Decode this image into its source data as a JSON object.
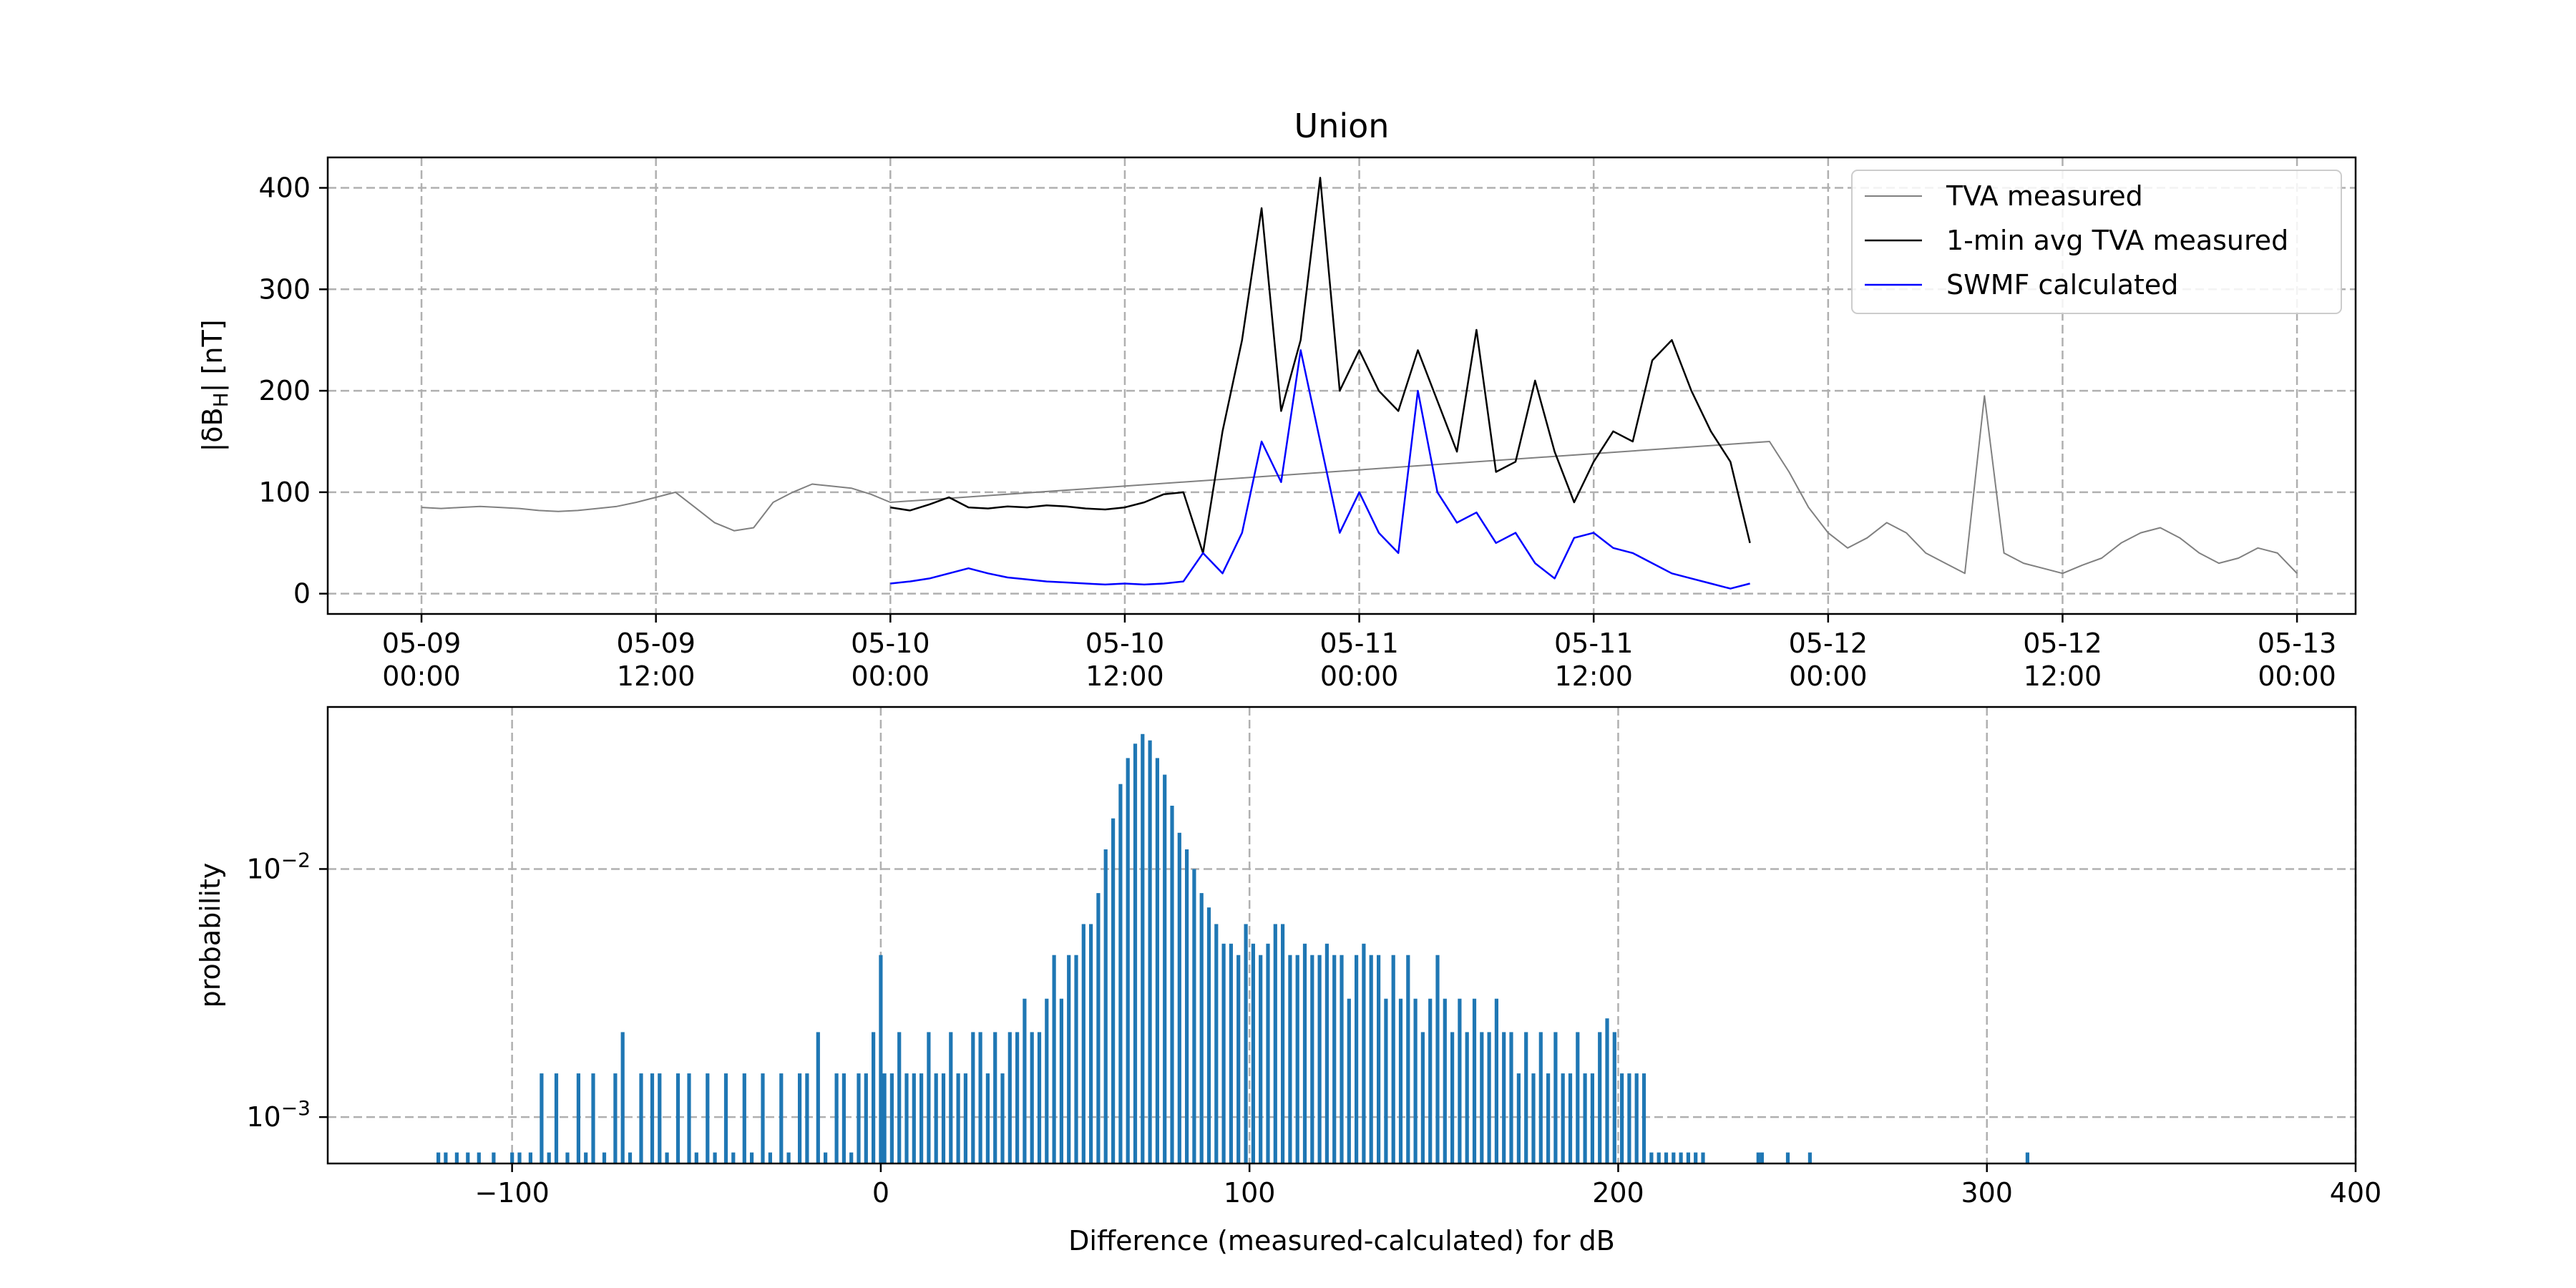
{
  "figure": {
    "background": "#ffffff"
  },
  "chart_data": [
    {
      "type": "line",
      "title": "Union",
      "xlabel": "",
      "ylabel": "|δB_H| [nT]",
      "ylabel_main": "|δB",
      "ylabel_sub": "H",
      "ylabel_tail": "| [nT]",
      "x_unit": "datetime",
      "xlim": [
        "2024-05-08T19:12",
        "2024-05-13T03:00"
      ],
      "ylim": [
        -20,
        430
      ],
      "x_ticks": [
        {
          "value": "2024-05-09T00:00",
          "line1": "05-09",
          "line2": "00:00"
        },
        {
          "value": "2024-05-09T12:00",
          "line1": "05-09",
          "line2": "12:00"
        },
        {
          "value": "2024-05-10T00:00",
          "line1": "05-10",
          "line2": "00:00"
        },
        {
          "value": "2024-05-10T12:00",
          "line1": "05-10",
          "line2": "12:00"
        },
        {
          "value": "2024-05-11T00:00",
          "line1": "05-11",
          "line2": "00:00"
        },
        {
          "value": "2024-05-11T12:00",
          "line1": "05-11",
          "line2": "12:00"
        },
        {
          "value": "2024-05-12T00:00",
          "line1": "05-12",
          "line2": "00:00"
        },
        {
          "value": "2024-05-12T12:00",
          "line1": "05-12",
          "line2": "12:00"
        },
        {
          "value": "2024-05-13T00:00",
          "line1": "05-13",
          "line2": "00:00"
        }
      ],
      "y_ticks": [
        0,
        100,
        200,
        300,
        400
      ],
      "grid": true,
      "legend_position": "top-right",
      "series": [
        {
          "name": "TVA measured",
          "color": "#808080",
          "x": [
            "2024-05-09T00:00",
            "2024-05-09T01:00",
            "2024-05-09T02:00",
            "2024-05-09T03:00",
            "2024-05-09T04:00",
            "2024-05-09T05:00",
            "2024-05-09T06:00",
            "2024-05-09T07:00",
            "2024-05-09T08:00",
            "2024-05-09T09:00",
            "2024-05-09T10:00",
            "2024-05-09T11:00",
            "2024-05-09T12:00",
            "2024-05-09T13:00",
            "2024-05-09T14:00",
            "2024-05-09T15:00",
            "2024-05-09T16:00",
            "2024-05-09T17:00",
            "2024-05-09T18:00",
            "2024-05-09T19:00",
            "2024-05-09T20:00",
            "2024-05-09T21:00",
            "2024-05-09T22:00",
            "2024-05-09T23:00",
            "2024-05-10T00:00",
            "2024-05-11T21:00",
            "2024-05-11T22:00",
            "2024-05-11T23:00",
            "2024-05-12T00:00",
            "2024-05-12T01:00",
            "2024-05-12T02:00",
            "2024-05-12T03:00",
            "2024-05-12T04:00",
            "2024-05-12T05:00",
            "2024-05-12T06:00",
            "2024-05-12T07:00",
            "2024-05-12T08:00",
            "2024-05-12T09:00",
            "2024-05-12T10:00",
            "2024-05-12T11:00",
            "2024-05-12T12:00",
            "2024-05-12T13:00",
            "2024-05-12T14:00",
            "2024-05-12T15:00",
            "2024-05-12T16:00",
            "2024-05-12T17:00",
            "2024-05-12T18:00",
            "2024-05-12T19:00",
            "2024-05-12T20:00",
            "2024-05-12T21:00",
            "2024-05-12T22:00",
            "2024-05-12T23:00",
            "2024-05-13T00:00"
          ],
          "y": [
            85,
            84,
            85,
            86,
            85,
            84,
            82,
            81,
            82,
            84,
            86,
            90,
            95,
            100,
            85,
            70,
            62,
            65,
            90,
            100,
            108,
            106,
            104,
            98,
            90,
            150,
            120,
            85,
            60,
            45,
            55,
            70,
            60,
            40,
            30,
            20,
            195,
            40,
            30,
            25,
            20,
            28,
            35,
            50,
            60,
            65,
            55,
            40,
            30,
            35,
            45,
            40,
            20
          ]
        },
        {
          "name": "1-min avg TVA measured",
          "color": "#000000",
          "x": [
            "2024-05-10T00:00",
            "2024-05-10T01:00",
            "2024-05-10T02:00",
            "2024-05-10T03:00",
            "2024-05-10T04:00",
            "2024-05-10T05:00",
            "2024-05-10T06:00",
            "2024-05-10T07:00",
            "2024-05-10T08:00",
            "2024-05-10T09:00",
            "2024-05-10T10:00",
            "2024-05-10T11:00",
            "2024-05-10T12:00",
            "2024-05-10T13:00",
            "2024-05-10T14:00",
            "2024-05-10T15:00",
            "2024-05-10T16:00",
            "2024-05-10T17:00",
            "2024-05-10T18:00",
            "2024-05-10T19:00",
            "2024-05-10T20:00",
            "2024-05-10T21:00",
            "2024-05-10T22:00",
            "2024-05-10T23:00",
            "2024-05-11T00:00",
            "2024-05-11T01:00",
            "2024-05-11T02:00",
            "2024-05-11T03:00",
            "2024-05-11T04:00",
            "2024-05-11T05:00",
            "2024-05-11T06:00",
            "2024-05-11T07:00",
            "2024-05-11T08:00",
            "2024-05-11T09:00",
            "2024-05-11T10:00",
            "2024-05-11T11:00",
            "2024-05-11T12:00",
            "2024-05-11T13:00",
            "2024-05-11T14:00",
            "2024-05-11T15:00",
            "2024-05-11T16:00",
            "2024-05-11T17:00",
            "2024-05-11T18:00",
            "2024-05-11T19:00",
            "2024-05-11T20:00"
          ],
          "y": [
            85,
            82,
            88,
            95,
            85,
            84,
            86,
            85,
            87,
            86,
            84,
            83,
            85,
            90,
            98,
            100,
            40,
            160,
            250,
            380,
            180,
            250,
            410,
            200,
            240,
            200,
            180,
            240,
            190,
            140,
            260,
            120,
            130,
            210,
            140,
            90,
            130,
            160,
            150,
            230,
            250,
            200,
            160,
            130,
            50
          ]
        },
        {
          "name": "SWMF calculated",
          "color": "#0000ff",
          "x": [
            "2024-05-10T00:00",
            "2024-05-10T01:00",
            "2024-05-10T02:00",
            "2024-05-10T03:00",
            "2024-05-10T04:00",
            "2024-05-10T05:00",
            "2024-05-10T06:00",
            "2024-05-10T07:00",
            "2024-05-10T08:00",
            "2024-05-10T09:00",
            "2024-05-10T10:00",
            "2024-05-10T11:00",
            "2024-05-10T12:00",
            "2024-05-10T13:00",
            "2024-05-10T14:00",
            "2024-05-10T15:00",
            "2024-05-10T16:00",
            "2024-05-10T17:00",
            "2024-05-10T18:00",
            "2024-05-10T19:00",
            "2024-05-10T20:00",
            "2024-05-10T21:00",
            "2024-05-10T22:00",
            "2024-05-10T23:00",
            "2024-05-11T00:00",
            "2024-05-11T01:00",
            "2024-05-11T02:00",
            "2024-05-11T03:00",
            "2024-05-11T04:00",
            "2024-05-11T05:00",
            "2024-05-11T06:00",
            "2024-05-11T07:00",
            "2024-05-11T08:00",
            "2024-05-11T09:00",
            "2024-05-11T10:00",
            "2024-05-11T11:00",
            "2024-05-11T12:00",
            "2024-05-11T13:00",
            "2024-05-11T14:00",
            "2024-05-11T15:00",
            "2024-05-11T16:00",
            "2024-05-11T17:00",
            "2024-05-11T18:00",
            "2024-05-11T19:00",
            "2024-05-11T20:00"
          ],
          "y": [
            10,
            12,
            15,
            20,
            25,
            20,
            16,
            14,
            12,
            11,
            10,
            9,
            10,
            9,
            10,
            12,
            40,
            20,
            60,
            150,
            110,
            240,
            150,
            60,
            100,
            60,
            40,
            200,
            100,
            70,
            80,
            50,
            60,
            30,
            15,
            55,
            60,
            45,
            40,
            30,
            20,
            15,
            10,
            5,
            10
          ]
        }
      ]
    },
    {
      "type": "bar",
      "title": "",
      "xlabel": "Difference (measured-calculated) for dB",
      "ylabel": "probability",
      "xlim": [
        -150,
        400
      ],
      "ylim": [
        0.00065,
        0.045
      ],
      "y_scale": "log",
      "x_ticks": [
        -100,
        0,
        100,
        200,
        300,
        400
      ],
      "x_tick_labels": [
        "−100",
        "0",
        "100",
        "200",
        "300",
        "400"
      ],
      "y_tick_labels": [
        {
          "value": 0.01,
          "base": "10",
          "exp": "−2"
        },
        {
          "value": 0.001,
          "base": "10",
          "exp": "−3"
        }
      ],
      "grid": true,
      "color": "#1f77b4",
      "bin_width": 0.5,
      "bins": [
        [
          -120,
          0.00072
        ],
        [
          -118,
          0.00072
        ],
        [
          -115,
          0.00072
        ],
        [
          -112,
          0.00072
        ],
        [
          -109,
          0.00072
        ],
        [
          -105,
          0.00072
        ],
        [
          -100,
          0.00072
        ],
        [
          -98,
          0.00072
        ],
        [
          -95,
          0.00072
        ],
        [
          -92,
          0.0015
        ],
        [
          -90,
          0.00072
        ],
        [
          -88,
          0.0015
        ],
        [
          -85,
          0.00072
        ],
        [
          -82,
          0.0015
        ],
        [
          -80,
          0.00072
        ],
        [
          -78,
          0.0015
        ],
        [
          -75,
          0.00072
        ],
        [
          -72,
          0.0015
        ],
        [
          -70,
          0.0022
        ],
        [
          -68,
          0.00072
        ],
        [
          -65,
          0.0015
        ],
        [
          -62,
          0.0015
        ],
        [
          -60,
          0.0015
        ],
        [
          -58,
          0.00072
        ],
        [
          -55,
          0.0015
        ],
        [
          -52,
          0.0015
        ],
        [
          -50,
          0.00072
        ],
        [
          -47,
          0.0015
        ],
        [
          -45,
          0.00072
        ],
        [
          -42,
          0.0015
        ],
        [
          -40,
          0.00072
        ],
        [
          -37,
          0.0015
        ],
        [
          -35,
          0.00072
        ],
        [
          -32,
          0.0015
        ],
        [
          -30,
          0.00072
        ],
        [
          -27,
          0.0015
        ],
        [
          -25,
          0.00072
        ],
        [
          -22,
          0.0015
        ],
        [
          -20,
          0.0015
        ],
        [
          -17,
          0.0022
        ],
        [
          -15,
          0.00072
        ],
        [
          -12,
          0.0015
        ],
        [
          -10,
          0.0015
        ],
        [
          -8,
          0.00072
        ],
        [
          -6,
          0.0015
        ],
        [
          -4,
          0.0015
        ],
        [
          -2,
          0.0022
        ],
        [
          0,
          0.0045
        ],
        [
          1,
          0.0015
        ],
        [
          3,
          0.0015
        ],
        [
          5,
          0.0022
        ],
        [
          7,
          0.0015
        ],
        [
          9,
          0.0015
        ],
        [
          11,
          0.0015
        ],
        [
          13,
          0.0022
        ],
        [
          15,
          0.0015
        ],
        [
          17,
          0.0015
        ],
        [
          19,
          0.0022
        ],
        [
          21,
          0.0015
        ],
        [
          23,
          0.0015
        ],
        [
          25,
          0.0022
        ],
        [
          27,
          0.0022
        ],
        [
          29,
          0.0015
        ],
        [
          31,
          0.0022
        ],
        [
          33,
          0.0015
        ],
        [
          35,
          0.0022
        ],
        [
          37,
          0.0022
        ],
        [
          39,
          0.003
        ],
        [
          41,
          0.0022
        ],
        [
          43,
          0.0022
        ],
        [
          45,
          0.003
        ],
        [
          47,
          0.0045
        ],
        [
          49,
          0.003
        ],
        [
          51,
          0.0045
        ],
        [
          53,
          0.0045
        ],
        [
          55,
          0.006
        ],
        [
          57,
          0.006
        ],
        [
          59,
          0.008
        ],
        [
          61,
          0.012
        ],
        [
          63,
          0.016
        ],
        [
          65,
          0.022
        ],
        [
          67,
          0.028
        ],
        [
          69,
          0.032
        ],
        [
          71,
          0.035
        ],
        [
          73,
          0.033
        ],
        [
          75,
          0.028
        ],
        [
          77,
          0.024
        ],
        [
          79,
          0.018
        ],
        [
          81,
          0.014
        ],
        [
          83,
          0.012
        ],
        [
          85,
          0.01
        ],
        [
          87,
          0.008
        ],
        [
          89,
          0.007
        ],
        [
          91,
          0.006
        ],
        [
          93,
          0.005
        ],
        [
          95,
          0.005
        ],
        [
          97,
          0.0045
        ],
        [
          99,
          0.006
        ],
        [
          101,
          0.005
        ],
        [
          103,
          0.0045
        ],
        [
          105,
          0.005
        ],
        [
          107,
          0.006
        ],
        [
          109,
          0.006
        ],
        [
          111,
          0.0045
        ],
        [
          113,
          0.0045
        ],
        [
          115,
          0.005
        ],
        [
          117,
          0.0045
        ],
        [
          119,
          0.0045
        ],
        [
          121,
          0.005
        ],
        [
          123,
          0.0045
        ],
        [
          125,
          0.0045
        ],
        [
          127,
          0.003
        ],
        [
          129,
          0.0045
        ],
        [
          131,
          0.005
        ],
        [
          133,
          0.0045
        ],
        [
          135,
          0.0045
        ],
        [
          137,
          0.003
        ],
        [
          139,
          0.0045
        ],
        [
          141,
          0.003
        ],
        [
          143,
          0.0045
        ],
        [
          145,
          0.003
        ],
        [
          147,
          0.0022
        ],
        [
          149,
          0.003
        ],
        [
          151,
          0.0045
        ],
        [
          153,
          0.003
        ],
        [
          155,
          0.0022
        ],
        [
          157,
          0.003
        ],
        [
          159,
          0.0022
        ],
        [
          161,
          0.003
        ],
        [
          163,
          0.0022
        ],
        [
          165,
          0.0022
        ],
        [
          167,
          0.003
        ],
        [
          169,
          0.0022
        ],
        [
          171,
          0.0022
        ],
        [
          173,
          0.0015
        ],
        [
          175,
          0.0022
        ],
        [
          177,
          0.0015
        ],
        [
          179,
          0.0022
        ],
        [
          181,
          0.0015
        ],
        [
          183,
          0.0022
        ],
        [
          185,
          0.0015
        ],
        [
          187,
          0.0015
        ],
        [
          189,
          0.0022
        ],
        [
          191,
          0.0015
        ],
        [
          193,
          0.0015
        ],
        [
          195,
          0.0022
        ],
        [
          197,
          0.0025
        ],
        [
          199,
          0.0022
        ],
        [
          201,
          0.0015
        ],
        [
          203,
          0.0015
        ],
        [
          205,
          0.0015
        ],
        [
          207,
          0.0015
        ],
        [
          209,
          0.00072
        ],
        [
          211,
          0.00072
        ],
        [
          213,
          0.00072
        ],
        [
          215,
          0.00072
        ],
        [
          217,
          0.00072
        ],
        [
          219,
          0.00072
        ],
        [
          221,
          0.00072
        ],
        [
          223,
          0.00072
        ],
        [
          238,
          0.00072
        ],
        [
          239,
          0.00072
        ],
        [
          246,
          0.00072
        ],
        [
          252,
          0.00072
        ],
        [
          311,
          0.00072
        ]
      ]
    }
  ]
}
